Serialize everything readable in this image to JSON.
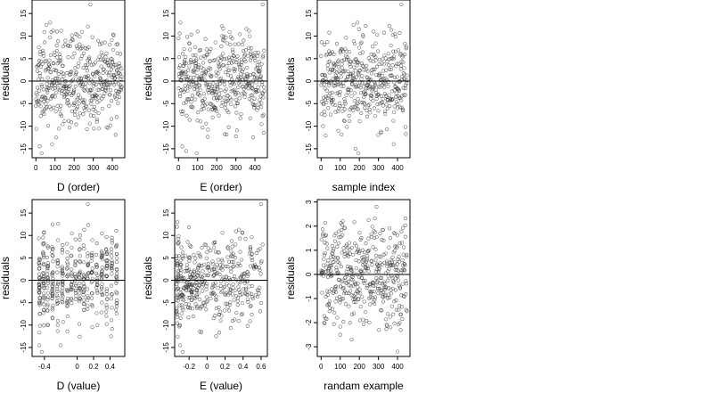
{
  "chart_data": [
    {
      "type": "scatter",
      "xlabel": "D (order)",
      "ylabel": "residuals",
      "xlim": [
        -20,
        465
      ],
      "ylim": [
        -17,
        18
      ],
      "xticks": [
        0,
        100,
        200,
        300,
        400
      ],
      "yticks": [
        -15,
        -10,
        -5,
        0,
        5,
        10,
        15
      ],
      "x_kind": "index",
      "hline": 0,
      "seed": 11,
      "n_points": 440,
      "y_spread": 4.8,
      "outliers": [
        [
          55,
          12.5
        ],
        [
          75,
          13.0
        ],
        [
          285,
          17.0
        ],
        [
          20,
          -14.5
        ],
        [
          30,
          -16.0
        ],
        [
          85,
          -14.0
        ],
        [
          110,
          11.0
        ]
      ]
    },
    {
      "type": "scatter",
      "xlabel": "E (order)",
      "ylabel": "residuals",
      "xlim": [
        -20,
        465
      ],
      "ylim": [
        -17,
        18
      ],
      "xticks": [
        0,
        100,
        200,
        300,
        400
      ],
      "yticks": [
        -15,
        -10,
        -5,
        0,
        5,
        10,
        15
      ],
      "x_kind": "index",
      "hline": 0,
      "seed": 23,
      "n_points": 440,
      "y_spread": 4.8,
      "outliers": [
        [
          10,
          13.0
        ],
        [
          100,
          11.0
        ],
        [
          440,
          17.0
        ],
        [
          20,
          -14.5
        ],
        [
          40,
          -15.5
        ],
        [
          95,
          -16.0
        ],
        [
          390,
          -12.5
        ]
      ]
    },
    {
      "type": "scatter",
      "xlabel": "sample index",
      "ylabel": "residuals",
      "xlim": [
        -20,
        465
      ],
      "ylim": [
        -17,
        18
      ],
      "xticks": [
        0,
        100,
        200,
        300,
        400
      ],
      "yticks": [
        -15,
        -10,
        -5,
        0,
        5,
        10,
        15
      ],
      "x_kind": "index",
      "hline": 0,
      "seed": 37,
      "n_points": 440,
      "y_spread": 4.8,
      "outliers": [
        [
          170,
          12.5
        ],
        [
          190,
          13.0
        ],
        [
          420,
          17.0
        ],
        [
          180,
          -15.0
        ],
        [
          195,
          -16.0
        ],
        [
          380,
          -14.0
        ],
        [
          90,
          -11.0
        ]
      ]
    },
    {
      "type": "scatter",
      "xlabel": "D (value)",
      "ylabel": "residuals",
      "xlim": [
        -0.55,
        0.58
      ],
      "ylim": [
        -17,
        18
      ],
      "xticks": [
        -0.4,
        0.0,
        0.2,
        0.4
      ],
      "yticks": [
        -15,
        -10,
        -5,
        0,
        5,
        10,
        15
      ],
      "x_kind": "discrete",
      "x_levels": [
        -0.46,
        -0.41,
        -0.36,
        -0.3,
        -0.24,
        -0.18,
        -0.12,
        -0.07,
        -0.02,
        0.03,
        0.08,
        0.13,
        0.18,
        0.24,
        0.3,
        0.36,
        0.42,
        0.48
      ],
      "hline": 0,
      "seed": 53,
      "n_points": 440,
      "y_spread": 4.6,
      "outliers": [
        [
          0.13,
          17.0
        ],
        [
          -0.46,
          -14.5
        ],
        [
          -0.43,
          -16.0
        ],
        [
          -0.2,
          -14.5
        ],
        [
          -0.3,
          12.5
        ]
      ]
    },
    {
      "type": "scatter",
      "xlabel": "E (value)",
      "ylabel": "residuals",
      "xlim": [
        -0.36,
        0.67
      ],
      "ylim": [
        -17,
        18
      ],
      "xticks": [
        -0.2,
        0.0,
        0.2,
        0.4,
        0.6
      ],
      "yticks": [
        -15,
        -10,
        -5,
        0,
        5,
        10,
        15
      ],
      "x_kind": "skewed",
      "hline": 0,
      "seed": 71,
      "n_points": 440,
      "y_spread": 4.8,
      "outliers": [
        [
          0.6,
          17.0
        ],
        [
          -0.3,
          -14.5
        ],
        [
          -0.27,
          -16.0
        ],
        [
          0.1,
          -12.5
        ],
        [
          -0.33,
          13.0
        ]
      ]
    },
    {
      "type": "scatter",
      "xlabel": "randam example",
      "ylabel": "residuals",
      "xlim": [
        -20,
        465
      ],
      "ylim": [
        -3.4,
        3.1
      ],
      "xticks": [
        0,
        100,
        200,
        300,
        400
      ],
      "yticks": [
        -3,
        -2,
        -1,
        0,
        1,
        2,
        3
      ],
      "x_kind": "index",
      "hline": 0,
      "seed": 89,
      "n_points": 440,
      "y_spread": 1.0,
      "outliers": [
        [
          290,
          2.8
        ],
        [
          400,
          -3.2
        ],
        [
          160,
          -2.7
        ],
        [
          100,
          -2.5
        ]
      ]
    }
  ]
}
